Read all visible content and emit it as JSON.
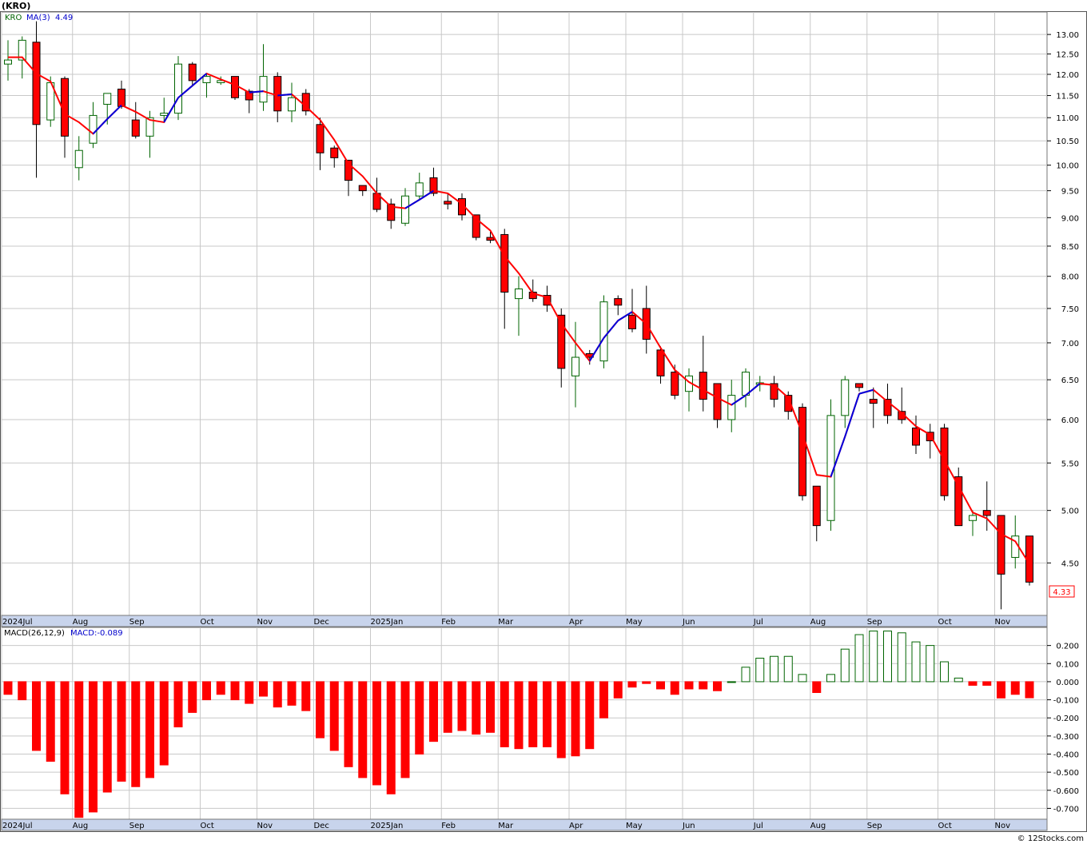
{
  "header": {
    "symbol": "(KRO)",
    "legend_symbol": "KRO",
    "legend_ma": "MA(3)",
    "legend_ma_value": "4.49",
    "last_price": "4.33"
  },
  "macd_header": {
    "label": "MACD(26,12,9)",
    "value_label": "MACD:-0.089"
  },
  "footer": "© 12Stocks.com",
  "colors": {
    "up": "#ffffff",
    "up_border": "#006400",
    "down": "#ff0000",
    "down_border": "#000000",
    "ma_down": "#ff0000",
    "ma_up": "#0000dd",
    "grid": "#c8c8c8",
    "axis_bar": "#c8d4ec"
  },
  "chart_data": [
    {
      "type": "candlestick",
      "title": "(KRO)",
      "scale": "log",
      "ylim": [
        4.05,
        13.6
      ],
      "y_ticks": [
        4.5,
        5.0,
        5.5,
        6.0,
        6.5,
        7.0,
        7.5,
        8.0,
        8.5,
        9.0,
        9.5,
        10.0,
        10.5,
        11.0,
        11.5,
        12.0,
        12.5,
        13.0
      ],
      "y_tick_labels": [
        "4.50",
        "5.00",
        "5.50",
        "6.00",
        "6.50",
        "7.00",
        "7.50",
        "8.00",
        "8.50",
        "9.00",
        "9.50",
        "10.00",
        "10.50",
        "11.00",
        "11.50",
        "12.00",
        "12.50",
        "13.00"
      ],
      "x_labels": [
        {
          "label": "2024Jul",
          "index": 0
        },
        {
          "label": "Aug",
          "index": 5
        },
        {
          "label": "Sep",
          "index": 9
        },
        {
          "label": "Oct",
          "index": 14
        },
        {
          "label": "Nov",
          "index": 18
        },
        {
          "label": "Dec",
          "index": 22
        },
        {
          "label": "2025Jan",
          "index": 26
        },
        {
          "label": "Feb",
          "index": 31
        },
        {
          "label": "Mar",
          "index": 35
        },
        {
          "label": "Apr",
          "index": 40
        },
        {
          "label": "May",
          "index": 44
        },
        {
          "label": "Jun",
          "index": 48
        },
        {
          "label": "Jul",
          "index": 53
        },
        {
          "label": "Aug",
          "index": 57
        },
        {
          "label": "Sep",
          "index": 61
        },
        {
          "label": "Oct",
          "index": 66
        },
        {
          "label": "Nov",
          "index": 70
        }
      ],
      "ohlc": [
        [
          12.25,
          12.85,
          11.85,
          12.35
        ],
        [
          12.35,
          12.95,
          11.9,
          12.85
        ],
        [
          12.8,
          13.35,
          9.75,
          10.85
        ],
        [
          10.95,
          11.95,
          10.8,
          11.8
        ],
        [
          11.9,
          11.95,
          10.15,
          10.6
        ],
        [
          9.95,
          10.6,
          9.7,
          10.3
        ],
        [
          10.45,
          11.35,
          10.35,
          11.05
        ],
        [
          11.3,
          11.55,
          10.85,
          11.55
        ],
        [
          11.65,
          11.85,
          11.2,
          11.25
        ],
        [
          10.95,
          11.35,
          10.55,
          10.6
        ],
        [
          10.6,
          11.15,
          10.15,
          11.0
        ],
        [
          11.05,
          11.45,
          10.9,
          11.1
        ],
        [
          11.1,
          12.45,
          10.95,
          12.25
        ],
        [
          12.25,
          12.3,
          11.75,
          11.85
        ],
        [
          11.8,
          12.0,
          11.45,
          11.95
        ],
        [
          11.8,
          11.95,
          11.75,
          11.85
        ],
        [
          11.95,
          11.95,
          11.4,
          11.45
        ],
        [
          11.6,
          11.65,
          11.1,
          11.4
        ],
        [
          11.35,
          12.75,
          11.15,
          11.95
        ],
        [
          11.95,
          12.05,
          10.9,
          11.15
        ],
        [
          11.15,
          11.8,
          10.9,
          11.45
        ],
        [
          11.55,
          11.65,
          11.05,
          11.15
        ],
        [
          10.85,
          11.0,
          9.9,
          10.25
        ],
        [
          10.35,
          10.4,
          9.95,
          10.15
        ],
        [
          10.1,
          10.1,
          9.4,
          9.7
        ],
        [
          9.6,
          9.6,
          9.4,
          9.5
        ],
        [
          9.45,
          9.75,
          9.1,
          9.15
        ],
        [
          9.25,
          9.35,
          8.8,
          8.95
        ],
        [
          8.9,
          9.55,
          8.85,
          9.4
        ],
        [
          9.4,
          9.85,
          9.35,
          9.65
        ],
        [
          9.75,
          9.95,
          9.4,
          9.45
        ],
        [
          9.3,
          9.45,
          9.15,
          9.25
        ],
        [
          9.35,
          9.45,
          8.95,
          9.05
        ],
        [
          9.05,
          9.05,
          8.6,
          8.65
        ],
        [
          8.65,
          8.75,
          8.55,
          8.6
        ],
        [
          8.7,
          8.8,
          7.2,
          7.75
        ],
        [
          7.65,
          8.0,
          7.1,
          7.8
        ],
        [
          7.75,
          7.95,
          7.6,
          7.65
        ],
        [
          7.7,
          7.85,
          7.45,
          7.55
        ],
        [
          7.4,
          7.5,
          6.4,
          6.65
        ],
        [
          6.55,
          7.3,
          6.15,
          6.8
        ],
        [
          6.85,
          6.9,
          6.7,
          6.8
        ],
        [
          6.75,
          7.7,
          6.65,
          7.6
        ],
        [
          7.65,
          7.7,
          7.4,
          7.55
        ],
        [
          7.4,
          7.8,
          7.15,
          7.2
        ],
        [
          7.5,
          7.85,
          6.85,
          7.05
        ],
        [
          6.9,
          6.95,
          6.45,
          6.55
        ],
        [
          6.6,
          6.7,
          6.25,
          6.3
        ],
        [
          6.35,
          6.65,
          6.1,
          6.55
        ],
        [
          6.6,
          7.1,
          6.1,
          6.25
        ],
        [
          6.45,
          6.45,
          5.9,
          6.0
        ],
        [
          6.0,
          6.5,
          5.85,
          6.3
        ],
        [
          6.3,
          6.65,
          6.15,
          6.6
        ],
        [
          6.45,
          6.55,
          6.35,
          6.45
        ],
        [
          6.45,
          6.55,
          6.15,
          6.25
        ],
        [
          6.3,
          6.35,
          6.0,
          6.1
        ],
        [
          6.15,
          6.2,
          5.1,
          5.15
        ],
        [
          5.25,
          5.25,
          4.7,
          4.85
        ],
        [
          4.9,
          6.25,
          4.8,
          6.05
        ],
        [
          6.05,
          6.55,
          5.9,
          6.5
        ],
        [
          6.45,
          6.45,
          6.35,
          6.4
        ],
        [
          6.25,
          6.4,
          5.9,
          6.2
        ],
        [
          6.25,
          6.45,
          5.95,
          6.05
        ],
        [
          6.1,
          6.4,
          5.95,
          6.0
        ],
        [
          5.9,
          6.05,
          5.6,
          5.7
        ],
        [
          5.85,
          5.95,
          5.55,
          5.75
        ],
        [
          5.9,
          5.95,
          5.1,
          5.15
        ],
        [
          5.35,
          5.45,
          4.85,
          4.85
        ],
        [
          4.9,
          5.0,
          4.75,
          4.95
        ],
        [
          5.0,
          5.3,
          4.8,
          4.95
        ],
        [
          4.95,
          4.95,
          4.1,
          4.4
        ],
        [
          4.55,
          4.95,
          4.45,
          4.75
        ],
        [
          4.75,
          4.75,
          4.3,
          4.33
        ]
      ],
      "ma3": [
        12.42,
        12.42,
        12.02,
        11.83,
        11.08,
        10.9,
        10.65,
        10.97,
        11.28,
        11.13,
        10.95,
        10.9,
        11.45,
        11.73,
        12.02,
        11.88,
        11.75,
        11.57,
        11.6,
        11.5,
        11.53,
        11.25,
        10.95,
        10.52,
        10.03,
        9.78,
        9.45,
        9.2,
        9.17,
        9.33,
        9.5,
        9.45,
        9.25,
        8.98,
        8.77,
        8.33,
        8.05,
        7.73,
        7.67,
        7.28,
        7.0,
        6.75,
        7.07,
        7.32,
        7.45,
        7.27,
        6.93,
        6.63,
        6.47,
        6.37,
        6.27,
        6.18,
        6.3,
        6.45,
        6.43,
        6.27,
        5.83,
        5.37,
        5.35,
        5.8,
        6.32,
        6.37,
        6.22,
        6.08,
        5.92,
        5.82,
        5.53,
        5.25,
        4.98,
        4.92,
        4.77,
        4.7,
        4.49
      ]
    },
    {
      "type": "bar",
      "title": "MACD(26,12,9)",
      "ylim": [
        -0.76,
        0.3
      ],
      "y_ticks": [
        0.2,
        0.1,
        0.0,
        -0.1,
        -0.2,
        -0.3,
        -0.4,
        -0.5,
        -0.6,
        -0.7
      ],
      "y_tick_labels": [
        "0.200",
        "0.100",
        "0.000",
        "-0.100",
        "-0.200",
        "-0.300",
        "-0.400",
        "-0.500",
        "-0.600",
        "-0.700"
      ],
      "x_labels": [
        {
          "label": "2024Jul",
          "index": 0
        },
        {
          "label": "Aug",
          "index": 5
        },
        {
          "label": "Sep",
          "index": 9
        },
        {
          "label": "Oct",
          "index": 14
        },
        {
          "label": "Nov",
          "index": 18
        },
        {
          "label": "Dec",
          "index": 22
        },
        {
          "label": "2025Jan",
          "index": 26
        },
        {
          "label": "Feb",
          "index": 31
        },
        {
          "label": "Mar",
          "index": 35
        },
        {
          "label": "Apr",
          "index": 40
        },
        {
          "label": "May",
          "index": 44
        },
        {
          "label": "Jun",
          "index": 48
        },
        {
          "label": "Jul",
          "index": 53
        },
        {
          "label": "Aug",
          "index": 57
        },
        {
          "label": "Sep",
          "index": 61
        },
        {
          "label": "Oct",
          "index": 66
        },
        {
          "label": "Nov",
          "index": 70
        }
      ],
      "values": [
        -0.07,
        -0.1,
        -0.38,
        -0.44,
        -0.62,
        -0.75,
        -0.72,
        -0.61,
        -0.55,
        -0.58,
        -0.53,
        -0.46,
        -0.25,
        -0.17,
        -0.1,
        -0.07,
        -0.1,
        -0.12,
        -0.08,
        -0.14,
        -0.13,
        -0.16,
        -0.31,
        -0.38,
        -0.47,
        -0.53,
        -0.57,
        -0.62,
        -0.53,
        -0.4,
        -0.33,
        -0.28,
        -0.27,
        -0.29,
        -0.28,
        -0.36,
        -0.37,
        -0.36,
        -0.36,
        -0.42,
        -0.41,
        -0.37,
        -0.2,
        -0.09,
        -0.03,
        -0.01,
        -0.04,
        -0.07,
        -0.04,
        -0.04,
        -0.05,
        0.0,
        0.08,
        0.13,
        0.14,
        0.14,
        0.04,
        -0.06,
        0.04,
        0.18,
        0.26,
        0.28,
        0.28,
        0.27,
        0.22,
        0.2,
        0.11,
        0.02,
        -0.02,
        -0.02,
        -0.09,
        -0.07,
        -0.089
      ]
    }
  ]
}
